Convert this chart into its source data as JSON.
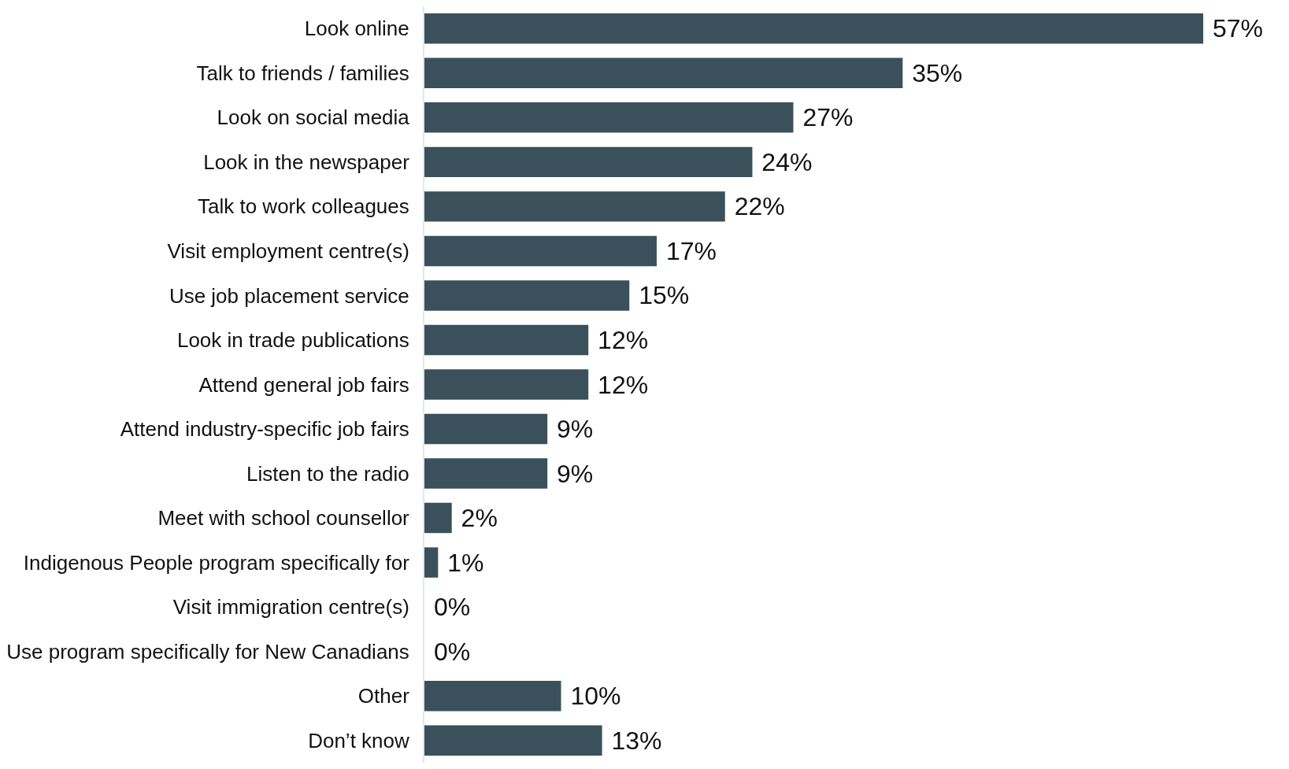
{
  "chart_data": {
    "type": "bar",
    "orientation": "horizontal",
    "tick_labels": "y",
    "categories": [
      "Look online",
      "Talk to friends / families",
      "Look on social media",
      "Look in the newspaper",
      "Talk to work colleagues",
      "Visit employment centre(s)",
      "Use job placement service",
      "Look in trade publications",
      "Attend general job fairs",
      "Attend industry-specific job fairs",
      "Listen to the radio",
      "Meet with school counsellor",
      "Indigenous People program specifically for",
      "Visit immigration centre(s)",
      "Use program specifically for New Canadians",
      "Other",
      "Don’t know"
    ],
    "values": [
      57,
      35,
      27,
      24,
      22,
      17,
      15,
      12,
      12,
      9,
      9,
      2,
      1,
      0,
      0,
      10,
      13
    ],
    "value_labels": [
      "57%",
      "35%",
      "27%",
      "24%",
      "22%",
      "17%",
      "15%",
      "12%",
      "12%",
      "9%",
      "9%",
      "2%",
      "1%",
      "0%",
      "0%",
      "10%",
      "13%"
    ],
    "color": "#3a505a"
  }
}
